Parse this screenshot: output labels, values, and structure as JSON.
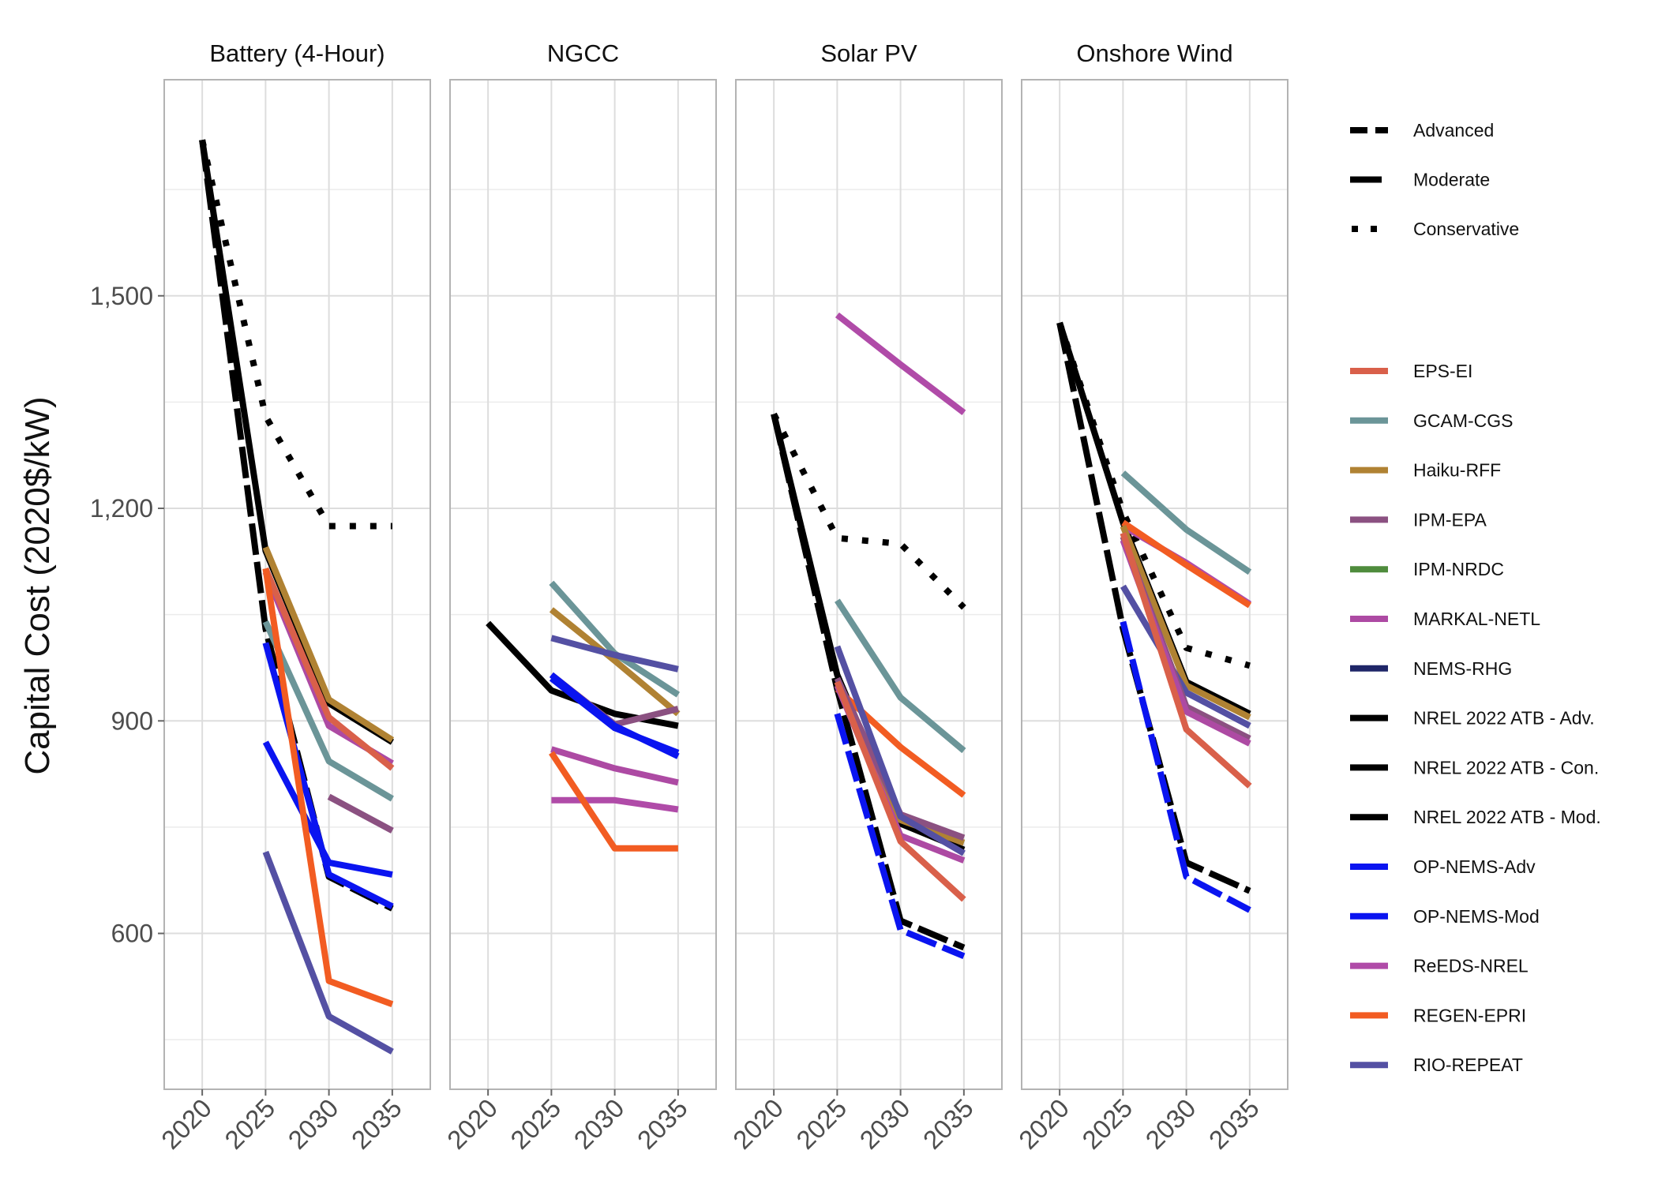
{
  "chart_data": {
    "type": "line",
    "ylabel": "Capital Cost (2020$/kW)",
    "x_ticks": [
      2020,
      2025,
      2030,
      2035
    ],
    "y_ticks": [
      600,
      900,
      1200,
      1500
    ],
    "y_tick_labels": [
      "600",
      "900",
      "1,200",
      "1,500"
    ],
    "ylim": [
      380,
      1805
    ],
    "xlim": [
      2017,
      2038
    ],
    "grid": true,
    "legend_placement": "right",
    "line_style_legend": [
      {
        "name": "Advanced",
        "dash": "dashed-short"
      },
      {
        "name": "Moderate",
        "dash": "dashed-long"
      },
      {
        "name": "Conservative",
        "dash": "dotted"
      }
    ],
    "models": [
      {
        "name": "EPS-EI",
        "color": "#d9604a"
      },
      {
        "name": "GCAM-CGS",
        "color": "#6b9598"
      },
      {
        "name": "Haiku-RFF",
        "color": "#b08233"
      },
      {
        "name": "IPM-EPA",
        "color": "#8b5181"
      },
      {
        "name": "IPM-NRDC",
        "color": "#4f8c3d"
      },
      {
        "name": "MARKAL-NETL",
        "color": "#ad4aa3"
      },
      {
        "name": "NEMS-RHG",
        "color": "#1f2668"
      },
      {
        "name": "NREL 2022 ATB - Adv.",
        "color": "#000000"
      },
      {
        "name": "NREL 2022 ATB - Con.",
        "color": "#000000"
      },
      {
        "name": "NREL 2022 ATB - Mod.",
        "color": "#000000"
      },
      {
        "name": "OP-NEMS-Adv",
        "color": "#0a14f0"
      },
      {
        "name": "OP-NEMS-Mod",
        "color": "#0a14f0"
      },
      {
        "name": "ReEDS-NREL",
        "color": "#b04ba8"
      },
      {
        "name": "REGEN-EPRI",
        "color": "#f25c22"
      },
      {
        "name": "RIO-REPEAT",
        "color": "#5450a3"
      }
    ],
    "panels": [
      {
        "title": "Battery (4-Hour)",
        "series": [
          {
            "model": "NREL 2022 ATB - Con.",
            "dash": "dotted",
            "x": [
              2020,
              2025,
              2030,
              2035
            ],
            "y": [
              1720,
              1330,
              1175,
              1175
            ]
          },
          {
            "model": "NREL 2022 ATB - Mod.",
            "dash": "solid",
            "x": [
              2020,
              2025,
              2030,
              2035
            ],
            "y": [
              1720,
              1140,
              925,
              870
            ]
          },
          {
            "model": "NREL 2022 ATB - Adv.",
            "dash": "dashed-long",
            "x": [
              2020,
              2025,
              2030,
              2035
            ],
            "y": [
              1720,
              1030,
              680,
              635
            ]
          },
          {
            "model": "Haiku-RFF",
            "dash": "solid",
            "x": [
              2025,
              2030,
              2035
            ],
            "y": [
              1145,
              930,
              873
            ]
          },
          {
            "model": "MARKAL-NETL",
            "dash": "solid",
            "x": [
              2025,
              2030,
              2035
            ],
            "y": [
              1110,
              893,
              840
            ]
          },
          {
            "model": "EPS-EI",
            "dash": "solid",
            "x": [
              2025,
              2030,
              2035
            ],
            "y": [
              1115,
              905,
              833
            ]
          },
          {
            "model": "GCAM-CGS",
            "dash": "solid",
            "x": [
              2025,
              2030,
              2035
            ],
            "y": [
              1040,
              843,
              790
            ]
          },
          {
            "model": "IPM-EPA",
            "dash": "solid",
            "x": [
              2030,
              2035
            ],
            "y": [
              793,
              745
            ]
          },
          {
            "model": "OP-NEMS-Mod",
            "dash": "solid",
            "x": [
              2025,
              2030,
              2035
            ],
            "y": [
              1010,
              683,
              638
            ]
          },
          {
            "model": "OP-NEMS-Adv",
            "dash": "solid",
            "x": [
              2025,
              2030,
              2035
            ],
            "y": [
              870,
              700,
              683
            ]
          },
          {
            "model": "REGEN-EPRI",
            "dash": "solid",
            "x": [
              2025,
              2030,
              2035
            ],
            "y": [
              1115,
              533,
              500
            ]
          },
          {
            "model": "RIO-REPEAT",
            "dash": "solid",
            "x": [
              2025,
              2030,
              2035
            ],
            "y": [
              715,
              483,
              433
            ]
          }
        ]
      },
      {
        "title": "NGCC",
        "series": [
          {
            "model": "NREL 2022 ATB - Mod.",
            "dash": "solid",
            "x": [
              2020,
              2025,
              2030,
              2035
            ],
            "y": [
              1038,
              943,
              910,
              893
            ]
          },
          {
            "model": "GCAM-CGS",
            "dash": "solid",
            "x": [
              2025,
              2030,
              2035
            ],
            "y": [
              1095,
              995,
              937
            ]
          },
          {
            "model": "Haiku-RFF",
            "dash": "solid",
            "x": [
              2025,
              2030,
              2035
            ],
            "y": [
              1057,
              985,
              910
            ]
          },
          {
            "model": "RIO-REPEAT",
            "dash": "solid",
            "x": [
              2025,
              2030,
              2035
            ],
            "y": [
              1017,
              993,
              973
            ]
          },
          {
            "model": "IPM-EPA",
            "dash": "solid",
            "x": [
              2025,
              2030,
              2035
            ],
            "y": [
              965,
              895,
              917
            ]
          },
          {
            "model": "OP-NEMS-Mod",
            "dash": "solid",
            "x": [
              2025,
              2030,
              2035
            ],
            "y": [
              965,
              893,
              850
            ]
          },
          {
            "model": "OP-NEMS-Adv",
            "dash": "solid",
            "x": [
              2025,
              2030,
              2035
            ],
            "y": [
              960,
              890,
              855
            ]
          },
          {
            "model": "MARKAL-NETL",
            "dash": "solid",
            "x": [
              2025,
              2030,
              2035
            ],
            "y": [
              860,
              833,
              813
            ]
          },
          {
            "model": "ReEDS-NREL",
            "dash": "solid",
            "x": [
              2025,
              2030,
              2035
            ],
            "y": [
              788,
              788,
              775
            ]
          },
          {
            "model": "REGEN-EPRI",
            "dash": "solid",
            "x": [
              2025,
              2030,
              2035
            ],
            "y": [
              855,
              720,
              720
            ]
          }
        ]
      },
      {
        "title": "Solar PV",
        "series": [
          {
            "model": "NREL 2022 ATB - Con.",
            "dash": "dotted",
            "x": [
              2020,
              2025,
              2030,
              2035
            ],
            "y": [
              1333,
              1158,
              1150,
              1060
            ]
          },
          {
            "model": "NREL 2022 ATB - Mod.",
            "dash": "solid",
            "x": [
              2020,
              2025,
              2030,
              2035
            ],
            "y": [
              1333,
              965,
              755,
              718
            ]
          },
          {
            "model": "NREL 2022 ATB - Adv.",
            "dash": "dashed-long",
            "x": [
              2020,
              2025,
              2030,
              2035
            ],
            "y": [
              1333,
              945,
              618,
              580
            ]
          },
          {
            "model": "ReEDS-NREL",
            "dash": "solid",
            "x": [
              2025,
              2030,
              2035
            ],
            "y": [
              1473,
              1403,
              1335
            ]
          },
          {
            "model": "GCAM-CGS",
            "dash": "solid",
            "x": [
              2025,
              2030,
              2035
            ],
            "y": [
              1070,
              933,
              858
            ]
          },
          {
            "model": "REGEN-EPRI",
            "dash": "solid",
            "x": [
              2025,
              2030,
              2035
            ],
            "y": [
              945,
              863,
              795
            ]
          },
          {
            "model": "Haiku-RFF",
            "dash": "solid",
            "x": [
              2025,
              2030,
              2035
            ],
            "y": [
              955,
              760,
              728
            ]
          },
          {
            "model": "IPM-EPA",
            "dash": "solid",
            "x": [
              2025,
              2030,
              2035
            ],
            "y": [
              960,
              768,
              735
            ]
          },
          {
            "model": "RIO-REPEAT",
            "dash": "solid",
            "x": [
              2025,
              2030,
              2035
            ],
            "y": [
              1005,
              765,
              713
            ]
          },
          {
            "model": "MARKAL-NETL",
            "dash": "solid",
            "x": [
              2025,
              2030,
              2035
            ],
            "y": [
              950,
              738,
              703
            ]
          },
          {
            "model": "EPS-EI",
            "dash": "solid",
            "x": [
              2025,
              2030,
              2035
            ],
            "y": [
              955,
              730,
              648
            ]
          },
          {
            "model": "OP-NEMS-Mod",
            "dash": "dashed-long",
            "x": [
              2025,
              2030,
              2035
            ],
            "y": [
              910,
              605,
              568
            ]
          }
        ]
      },
      {
        "title": "Onshore Wind",
        "series": [
          {
            "model": "NREL 2022 ATB - Con.",
            "dash": "dotted",
            "x": [
              2020,
              2025,
              2030,
              2035
            ],
            "y": [
              1462,
              1195,
              1003,
              978
            ]
          },
          {
            "model": "NREL 2022 ATB - Mod.",
            "dash": "solid",
            "x": [
              2020,
              2025,
              2030,
              2035
            ],
            "y": [
              1462,
              1180,
              955,
              910
            ]
          },
          {
            "model": "NREL 2022 ATB - Adv.",
            "dash": "dashed-long",
            "x": [
              2020,
              2025,
              2030,
              2035
            ],
            "y": [
              1462,
              1030,
              700,
              660
            ]
          },
          {
            "model": "GCAM-CGS",
            "dash": "solid",
            "x": [
              2025,
              2030,
              2035
            ],
            "y": [
              1250,
              1170,
              1110
            ]
          },
          {
            "model": "ReEDS-NREL",
            "dash": "solid",
            "x": [
              2025,
              2030,
              2035
            ],
            "y": [
              1175,
              1123,
              1065
            ]
          },
          {
            "model": "REGEN-EPRI",
            "dash": "solid",
            "x": [
              2025,
              2030,
              2035
            ],
            "y": [
              1180,
              1120,
              1063
            ]
          },
          {
            "model": "Haiku-RFF",
            "dash": "solid",
            "x": [
              2025,
              2030,
              2035
            ],
            "y": [
              1175,
              950,
              905
            ]
          },
          {
            "model": "RIO-REPEAT",
            "dash": "solid",
            "x": [
              2025,
              2030,
              2035
            ],
            "y": [
              1090,
              940,
              893
            ]
          },
          {
            "model": "IPM-EPA",
            "dash": "solid",
            "x": [
              2025,
              2030,
              2035
            ],
            "y": [
              1160,
              920,
              875
            ]
          },
          {
            "model": "MARKAL-NETL",
            "dash": "solid",
            "x": [
              2025,
              2030,
              2035
            ],
            "y": [
              1155,
              913,
              868
            ]
          },
          {
            "model": "EPS-EI",
            "dash": "solid",
            "x": [
              2025,
              2030,
              2035
            ],
            "y": [
              1165,
              888,
              808
            ]
          },
          {
            "model": "OP-NEMS-Mod",
            "dash": "dashed-long",
            "x": [
              2025,
              2030,
              2035
            ],
            "y": [
              1040,
              680,
              633
            ]
          }
        ]
      }
    ]
  }
}
